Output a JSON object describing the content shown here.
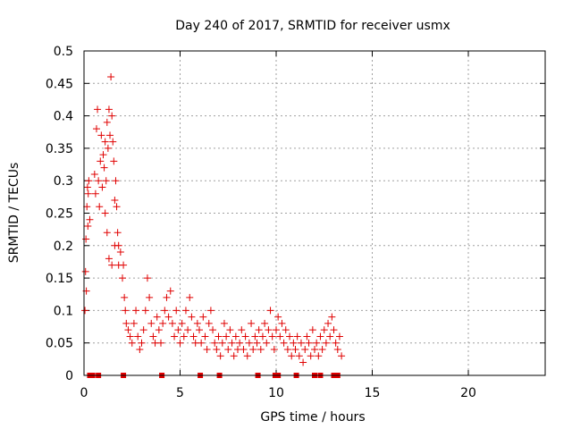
{
  "chart_data": {
    "type": "scatter",
    "title": "Day 240 of 2017, SRMTID for receiver usmx",
    "xlabel": "GPS time / hours",
    "ylabel": "SRMTID / TECUs",
    "xlim": [
      0,
      24
    ],
    "ylim": [
      0,
      0.5
    ],
    "xticks": [
      0,
      5,
      10,
      15,
      20
    ],
    "yticks": [
      0,
      0.05,
      0.1,
      0.15,
      0.2,
      0.25,
      0.3,
      0.35,
      0.4,
      0.45,
      0.5
    ],
    "grid": true,
    "marker": "+",
    "color": "#e00000",
    "series": [
      {
        "name": "SRMTID",
        "points": [
          [
            0.05,
            0.1
          ],
          [
            0.08,
            0.16
          ],
          [
            0.1,
            0.21
          ],
          [
            0.12,
            0.13
          ],
          [
            0.15,
            0.26
          ],
          [
            0.18,
            0.29
          ],
          [
            0.2,
            0.23
          ],
          [
            0.22,
            0.28
          ],
          [
            0.25,
            0.3
          ],
          [
            0.3,
            0.24
          ],
          [
            0.55,
            0.31
          ],
          [
            0.6,
            0.28
          ],
          [
            0.65,
            0.38
          ],
          [
            0.7,
            0.41
          ],
          [
            0.75,
            0.3
          ],
          [
            0.8,
            0.26
          ],
          [
            0.85,
            0.33
          ],
          [
            0.9,
            0.37
          ],
          [
            0.95,
            0.29
          ],
          [
            1.0,
            0.34
          ],
          [
            1.05,
            0.32
          ],
          [
            1.1,
            0.36
          ],
          [
            1.15,
            0.3
          ],
          [
            1.2,
            0.39
          ],
          [
            1.25,
            0.35
          ],
          [
            1.3,
            0.41
          ],
          [
            1.35,
            0.37
          ],
          [
            1.4,
            0.46
          ],
          [
            1.45,
            0.4
          ],
          [
            1.5,
            0.36
          ],
          [
            1.55,
            0.33
          ],
          [
            1.6,
            0.27
          ],
          [
            1.65,
            0.3
          ],
          [
            1.7,
            0.26
          ],
          [
            1.75,
            0.22
          ],
          [
            1.8,
            0.2
          ],
          [
            1.1,
            0.25
          ],
          [
            1.2,
            0.22
          ],
          [
            1.3,
            0.18
          ],
          [
            1.45,
            0.17
          ],
          [
            1.6,
            0.2
          ],
          [
            1.8,
            0.17
          ],
          [
            1.9,
            0.19
          ],
          [
            2.0,
            0.15
          ],
          [
            2.05,
            0.17
          ],
          [
            2.1,
            0.12
          ],
          [
            2.15,
            0.1
          ],
          [
            2.2,
            0.08
          ],
          [
            2.3,
            0.07
          ],
          [
            2.4,
            0.06
          ],
          [
            2.5,
            0.05
          ],
          [
            2.6,
            0.08
          ],
          [
            2.7,
            0.1
          ],
          [
            2.8,
            0.06
          ],
          [
            2.9,
            0.04
          ],
          [
            3.0,
            0.05
          ],
          [
            3.1,
            0.07
          ],
          [
            3.2,
            0.1
          ],
          [
            3.3,
            0.15
          ],
          [
            3.4,
            0.12
          ],
          [
            3.5,
            0.08
          ],
          [
            3.6,
            0.06
          ],
          [
            3.7,
            0.05
          ],
          [
            3.8,
            0.09
          ],
          [
            3.9,
            0.07
          ],
          [
            4.0,
            0.05
          ],
          [
            4.1,
            0.08
          ],
          [
            4.2,
            0.1
          ],
          [
            4.3,
            0.12
          ],
          [
            4.4,
            0.09
          ],
          [
            4.5,
            0.13
          ],
          [
            4.6,
            0.08
          ],
          [
            4.7,
            0.06
          ],
          [
            4.8,
            0.1
          ],
          [
            4.9,
            0.07
          ],
          [
            5.0,
            0.05
          ],
          [
            5.1,
            0.08
          ],
          [
            5.2,
            0.06
          ],
          [
            5.3,
            0.1
          ],
          [
            5.4,
            0.07
          ],
          [
            5.5,
            0.12
          ],
          [
            5.6,
            0.09
          ],
          [
            5.7,
            0.06
          ],
          [
            5.8,
            0.05
          ],
          [
            5.9,
            0.08
          ],
          [
            6.0,
            0.07
          ],
          [
            6.1,
            0.05
          ],
          [
            6.2,
            0.09
          ],
          [
            6.3,
            0.06
          ],
          [
            6.4,
            0.04
          ],
          [
            6.5,
            0.08
          ],
          [
            6.6,
            0.1
          ],
          [
            6.7,
            0.07
          ],
          [
            6.8,
            0.05
          ],
          [
            6.9,
            0.04
          ],
          [
            7.0,
            0.06
          ],
          [
            7.1,
            0.03
          ],
          [
            7.2,
            0.05
          ],
          [
            7.3,
            0.08
          ],
          [
            7.4,
            0.06
          ],
          [
            7.5,
            0.04
          ],
          [
            7.6,
            0.07
          ],
          [
            7.7,
            0.05
          ],
          [
            7.8,
            0.03
          ],
          [
            7.9,
            0.06
          ],
          [
            8.0,
            0.04
          ],
          [
            8.1,
            0.05
          ],
          [
            8.2,
            0.07
          ],
          [
            8.3,
            0.04
          ],
          [
            8.4,
            0.06
          ],
          [
            8.5,
            0.03
          ],
          [
            8.6,
            0.05
          ],
          [
            8.7,
            0.08
          ],
          [
            8.8,
            0.04
          ],
          [
            8.9,
            0.06
          ],
          [
            9.0,
            0.05
          ],
          [
            9.1,
            0.07
          ],
          [
            9.2,
            0.04
          ],
          [
            9.3,
            0.06
          ],
          [
            9.4,
            0.08
          ],
          [
            9.5,
            0.05
          ],
          [
            9.6,
            0.07
          ],
          [
            9.7,
            0.1
          ],
          [
            9.8,
            0.06
          ],
          [
            9.9,
            0.04
          ],
          [
            10.0,
            0.07
          ],
          [
            10.1,
            0.09
          ],
          [
            10.2,
            0.06
          ],
          [
            10.3,
            0.08
          ],
          [
            10.4,
            0.05
          ],
          [
            10.5,
            0.07
          ],
          [
            10.6,
            0.04
          ],
          [
            10.7,
            0.06
          ],
          [
            10.8,
            0.03
          ],
          [
            10.9,
            0.05
          ],
          [
            11.0,
            0.04
          ],
          [
            11.1,
            0.06
          ],
          [
            11.2,
            0.03
          ],
          [
            11.3,
            0.05
          ],
          [
            11.4,
            0.02
          ],
          [
            11.5,
            0.04
          ],
          [
            11.6,
            0.06
          ],
          [
            11.7,
            0.05
          ],
          [
            11.8,
            0.03
          ],
          [
            11.9,
            0.07
          ],
          [
            12.0,
            0.04
          ],
          [
            12.1,
            0.05
          ],
          [
            12.2,
            0.03
          ],
          [
            12.3,
            0.06
          ],
          [
            12.4,
            0.04
          ],
          [
            12.5,
            0.07
          ],
          [
            12.6,
            0.05
          ],
          [
            12.7,
            0.08
          ],
          [
            12.8,
            0.06
          ],
          [
            12.9,
            0.09
          ],
          [
            13.0,
            0.07
          ],
          [
            13.1,
            0.05
          ],
          [
            13.2,
            0.04
          ],
          [
            13.3,
            0.06
          ],
          [
            13.4,
            0.03
          ]
        ]
      }
    ],
    "zero_markers_x": [
      0.3,
      0.35,
      0.45,
      0.75,
      2.05,
      4.05,
      6.05,
      7.05,
      9.05,
      9.95,
      10.1,
      11.05,
      12.0,
      12.3,
      13.0,
      13.2
    ]
  }
}
